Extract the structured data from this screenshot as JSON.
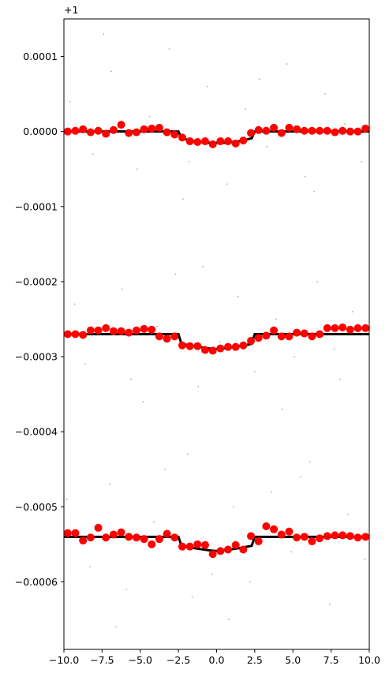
{
  "chart_data": {
    "type": "scatter",
    "offset_text": "+1",
    "xlim": [
      -10,
      10
    ],
    "xticks": [
      {
        "value": -10,
        "label": "−10.0"
      },
      {
        "value": -7.5,
        "label": "−7.5"
      },
      {
        "value": -5,
        "label": "−5.0"
      },
      {
        "value": -2.5,
        "label": "−2.5"
      },
      {
        "value": 0,
        "label": "0.0"
      },
      {
        "value": 2.5,
        "label": "2.5"
      },
      {
        "value": 5,
        "label": "5.0"
      },
      {
        "value": 7.5,
        "label": "7.5"
      },
      {
        "value": 10,
        "label": "10.0"
      }
    ],
    "ylim": [
      -0.00069,
      0.00015
    ],
    "yticks": [
      0.0001,
      {
        "value": 0,
        "label": "0.0000"
      },
      {
        "value": -0.0001,
        "label": "−0.0001"
      },
      {
        "value": -0.0002,
        "label": "−0.0002"
      },
      {
        "value": -0.0003,
        "label": "−0.0003"
      },
      {
        "value": -0.0004,
        "label": "−0.0004"
      },
      {
        "value": -0.0005,
        "label": "−0.0005"
      },
      {
        "value": -0.0006,
        "label": "−0.0006"
      }
    ],
    "series": [
      {
        "type": "scatter",
        "color": "#888888",
        "marker_size": 0.9,
        "x": [
          -9.6,
          -8.1,
          -6.9,
          -5.2,
          -4.4,
          -3.1,
          -1.8,
          -0.6,
          0.7,
          1.9,
          3.3,
          4.6,
          5.8,
          7.1,
          8.4,
          9.5,
          -7.4,
          -2.2,
          2.8,
          6.4,
          -9.3,
          -8.6,
          -6.2,
          -5.6,
          -3.9,
          -2.7,
          -1.2,
          0.2,
          1.4,
          2.5,
          3.9,
          5.1,
          6.6,
          7.7,
          8.9,
          -4.8,
          -0.9,
          4.3,
          8.1,
          -7.9,
          -9.8,
          -8.3,
          -7.0,
          -5.9,
          -4.1,
          -3.4,
          -1.6,
          -0.3,
          1.1,
          2.2,
          3.6,
          4.9,
          6.1,
          7.4,
          8.6,
          9.7,
          -6.6,
          -1.9,
          0.8,
          5.5
        ],
        "values": [
          4e-05,
          -3e-05,
          8e-05,
          -5e-05,
          2e-05,
          0.00011,
          -4e-05,
          6e-05,
          -7e-05,
          3e-05,
          -2e-05,
          9e-05,
          -6e-05,
          5e-05,
          1e-05,
          -4e-05,
          0.00013,
          -9e-05,
          7e-05,
          -8e-05,
          -0.00023,
          -0.00031,
          -0.00021,
          -0.00033,
          -0.00026,
          -0.00019,
          -0.00034,
          -0.00028,
          -0.00022,
          -0.00032,
          -0.00025,
          -0.0003,
          -0.0002,
          -0.00029,
          -0.00024,
          -0.00036,
          -0.00018,
          -0.00037,
          -0.00033,
          -0.00027,
          -0.00049,
          -0.00058,
          -0.00047,
          -0.00061,
          -0.00052,
          -0.00045,
          -0.00062,
          -0.00059,
          -0.0005,
          -0.0006,
          -0.00048,
          -0.00056,
          -0.00044,
          -0.00063,
          -0.00051,
          -0.00057,
          -0.00066,
          -0.00043,
          -0.00065,
          -0.00046
        ]
      },
      {
        "type": "line",
        "color": "#000000",
        "line_width": 3,
        "x": [
          -10,
          -2.5,
          -2.3,
          -1.5,
          -0.5,
          0,
          0.5,
          1.5,
          2.3,
          2.5,
          10
        ],
        "values": [
          0,
          0,
          -9e-06,
          -1.3e-05,
          -1.5e-05,
          -1.5e-05,
          -1.5e-05,
          -1.3e-05,
          -9e-06,
          0,
          0
        ]
      },
      {
        "type": "line",
        "color": "#000000",
        "line_width": 3,
        "x": [
          -10,
          -2.5,
          -2.3,
          -1.5,
          -0.5,
          0,
          0.5,
          1.5,
          2.3,
          2.5,
          10
        ],
        "values": [
          -0.00027,
          -0.00027,
          -0.000283,
          -0.000286,
          -0.000289,
          -0.00029,
          -0.000289,
          -0.000286,
          -0.000283,
          -0.00027,
          -0.00027
        ]
      },
      {
        "type": "line",
        "color": "#000000",
        "line_width": 3,
        "x": [
          -10,
          -2.5,
          -2.3,
          -1.5,
          -0.5,
          0,
          0.5,
          1.5,
          2.3,
          2.5,
          10
        ],
        "values": [
          -0.00054,
          -0.00054,
          -0.000552,
          -0.000555,
          -0.000558,
          -0.000559,
          -0.000558,
          -0.000555,
          -0.000552,
          -0.00054,
          -0.00054
        ]
      },
      {
        "type": "scatter",
        "color": "#ff0000",
        "marker_size": 5,
        "x": [
          -9.75,
          -9.25,
          -8.75,
          -8.25,
          -7.75,
          -7.25,
          -6.75,
          -6.25,
          -5.75,
          -5.25,
          -4.75,
          -4.25,
          -3.75,
          -3.25,
          -2.75,
          -2.25,
          -1.75,
          -1.25,
          -0.75,
          -0.25,
          0.25,
          0.75,
          1.25,
          1.75,
          2.25,
          2.75,
          3.25,
          3.75,
          4.25,
          4.75,
          5.25,
          5.75,
          6.25,
          6.75,
          7.25,
          7.75,
          8.25,
          8.75,
          9.25,
          9.75
        ],
        "values": [
          0,
          1e-06,
          3e-06,
          -1e-06,
          1e-06,
          -3e-06,
          2e-06,
          9e-06,
          -2e-06,
          -1e-06,
          3e-06,
          4e-06,
          5e-06,
          -1e-06,
          -4e-06,
          -8e-06,
          -1.3e-05,
          -1.4e-05,
          -1.3e-05,
          -1.7e-05,
          -1.3e-05,
          -1.3e-05,
          -1.6e-05,
          -1.2e-05,
          -2e-06,
          2e-06,
          1e-06,
          5e-06,
          -2e-06,
          5e-06,
          3e-06,
          1e-06,
          1e-06,
          1e-06,
          1e-06,
          -1e-06,
          1e-06,
          0,
          0,
          4e-06
        ]
      },
      {
        "type": "scatter",
        "color": "#ff0000",
        "marker_size": 5,
        "x": [
          -9.75,
          -9.25,
          -8.75,
          -8.25,
          -7.75,
          -7.25,
          -6.75,
          -6.25,
          -5.75,
          -5.25,
          -4.75,
          -4.25,
          -3.75,
          -3.25,
          -2.75,
          -2.25,
          -1.75,
          -1.25,
          -0.75,
          -0.25,
          0.25,
          0.75,
          1.25,
          1.75,
          2.25,
          2.75,
          3.25,
          3.75,
          4.25,
          4.75,
          5.25,
          5.75,
          6.25,
          6.75,
          7.25,
          7.75,
          8.25,
          8.75,
          9.25,
          9.75
        ],
        "values": [
          -0.00027,
          -0.00027,
          -0.000271,
          -0.000265,
          -0.000265,
          -0.000262,
          -0.000266,
          -0.000266,
          -0.000268,
          -0.000265,
          -0.000263,
          -0.000264,
          -0.000273,
          -0.000276,
          -0.000273,
          -0.000285,
          -0.000286,
          -0.000286,
          -0.000291,
          -0.000292,
          -0.000289,
          -0.000287,
          -0.000287,
          -0.000285,
          -0.000279,
          -0.000275,
          -0.000272,
          -0.000265,
          -0.000273,
          -0.000273,
          -0.000268,
          -0.000269,
          -0.000273,
          -0.00027,
          -0.000262,
          -0.000262,
          -0.000261,
          -0.000264,
          -0.000262,
          -0.000262
        ]
      },
      {
        "type": "scatter",
        "color": "#ff0000",
        "marker_size": 5,
        "x": [
          -9.75,
          -9.25,
          -8.75,
          -8.25,
          -7.75,
          -7.25,
          -6.75,
          -6.25,
          -5.75,
          -5.25,
          -4.75,
          -4.25,
          -3.75,
          -3.25,
          -2.75,
          -2.25,
          -1.75,
          -1.25,
          -0.75,
          -0.25,
          0.25,
          0.75,
          1.25,
          1.75,
          2.25,
          2.75,
          3.25,
          3.75,
          4.25,
          4.75,
          5.25,
          5.75,
          6.25,
          6.75,
          7.25,
          7.75,
          8.25,
          8.75,
          9.25,
          9.75
        ],
        "values": [
          -0.000535,
          -0.000535,
          -0.000545,
          -0.000541,
          -0.000528,
          -0.000541,
          -0.000537,
          -0.000534,
          -0.00054,
          -0.000541,
          -0.000543,
          -0.00055,
          -0.000543,
          -0.000536,
          -0.000541,
          -0.000553,
          -0.000553,
          -0.00055,
          -0.000551,
          -0.000563,
          -0.000559,
          -0.000557,
          -0.000551,
          -0.000557,
          -0.000539,
          -0.000546,
          -0.000526,
          -0.00053,
          -0.000537,
          -0.000533,
          -0.000541,
          -0.00054,
          -0.000546,
          -0.000542,
          -0.000539,
          -0.000538,
          -0.000538,
          -0.000539,
          -0.000541,
          -0.00054
        ]
      }
    ]
  }
}
